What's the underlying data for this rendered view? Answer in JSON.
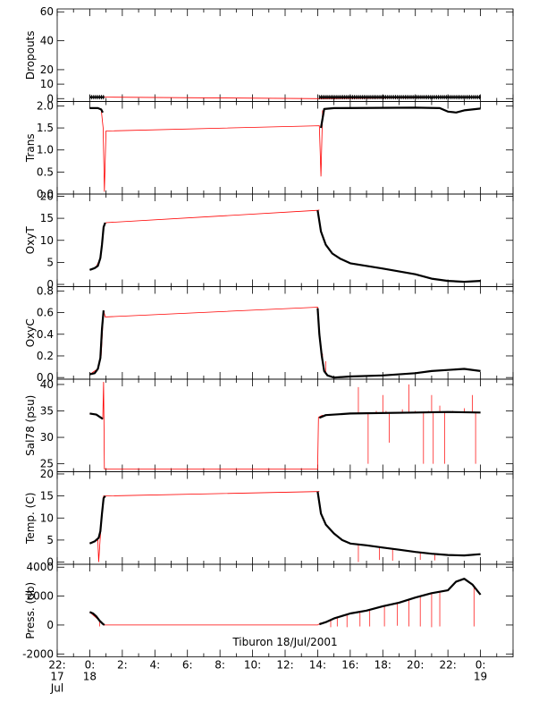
{
  "colors": {
    "axis": "#000000",
    "raw": "#ff0000",
    "data": "#000000"
  },
  "x_axis": {
    "domain": [
      -2,
      26
    ],
    "ticks": [
      {
        "v": -2,
        "label": "22:",
        "sub": [
          "17",
          "Jul"
        ]
      },
      {
        "v": 0,
        "label": "0:",
        "sub": [
          "18"
        ]
      },
      {
        "v": 2,
        "label": "2:"
      },
      {
        "v": 4,
        "label": "4:"
      },
      {
        "v": 6,
        "label": "6:"
      },
      {
        "v": 8,
        "label": "8:"
      },
      {
        "v": 10,
        "label": "10:"
      },
      {
        "v": 12,
        "label": "12:"
      },
      {
        "v": 14,
        "label": "14:"
      },
      {
        "v": 16,
        "label": "16:"
      },
      {
        "v": 18,
        "label": "18:"
      },
      {
        "v": 20,
        "label": "20:"
      },
      {
        "v": 22,
        "label": "22:"
      },
      {
        "v": 24,
        "label": "0:",
        "sub": [
          "19"
        ]
      }
    ],
    "title": "Tiburon 18/Jul/2001"
  },
  "chart_data": [
    {
      "type": "line",
      "ylabel": "Dropouts",
      "ylim": [
        -2,
        62
      ],
      "ticks": [
        {
          "v": 0,
          "label": "0"
        },
        {
          "v": 10,
          "label": "10"
        },
        {
          "v": 20,
          "label": "20"
        },
        {
          "v": 40,
          "label": "40"
        },
        {
          "v": 60,
          "label": "60"
        }
      ],
      "raw": [
        [
          0,
          1
        ],
        [
          0.9,
          1
        ],
        [
          14.2,
          0
        ],
        [
          24,
          1
        ]
      ],
      "data": [
        [
          [
            0,
            1
          ],
          [
            0.9,
            1
          ]
        ],
        [
          [
            14.1,
            1
          ],
          [
            24,
            1
          ]
        ]
      ],
      "spikes": []
    },
    {
      "type": "line",
      "ylabel": "Trans",
      "ylim": [
        0,
        2.1
      ],
      "ticks": [
        {
          "v": 0,
          "label": "0.0"
        },
        {
          "v": 0.5,
          "label": "0.5"
        },
        {
          "v": 1,
          "label": "1.0"
        },
        {
          "v": 1.5,
          "label": "1.5"
        },
        {
          "v": 2,
          "label": "2.0"
        }
      ],
      "raw": [
        [
          0,
          1.95
        ],
        [
          0.7,
          1.93
        ],
        [
          0.82,
          1.5
        ],
        [
          0.9,
          0.05
        ],
        [
          1.0,
          1.43
        ],
        [
          14.1,
          1.55
        ],
        [
          14.2,
          0.4
        ],
        [
          14.3,
          1.9
        ]
      ],
      "data": [
        [
          [
            0,
            1.95
          ],
          [
            0.5,
            1.95
          ],
          [
            0.7,
            1.92
          ],
          [
            0.8,
            1.85
          ]
        ],
        [
          [
            14.2,
            1.5
          ],
          [
            14.4,
            1.93
          ],
          [
            15,
            1.95
          ],
          [
            20,
            1.96
          ],
          [
            21.5,
            1.95
          ],
          [
            22,
            1.87
          ],
          [
            22.5,
            1.85
          ],
          [
            23,
            1.9
          ],
          [
            24,
            1.94
          ]
        ]
      ],
      "spikes": []
    },
    {
      "type": "line",
      "ylabel": "OxyT",
      "ylim": [
        -0.5,
        20.5
      ],
      "ticks": [
        {
          "v": 0,
          "label": "0"
        },
        {
          "v": 5,
          "label": "5"
        },
        {
          "v": 10,
          "label": "10"
        },
        {
          "v": 15,
          "label": "15"
        },
        {
          "v": 20,
          "label": "20"
        }
      ],
      "raw": [
        [
          0,
          3.3
        ],
        [
          0.4,
          4
        ],
        [
          0.65,
          6
        ],
        [
          0.85,
          13
        ],
        [
          1.0,
          14
        ],
        [
          14.0,
          16.8
        ],
        [
          14.1,
          16.9
        ]
      ],
      "data": [
        [
          [
            0,
            3.3
          ],
          [
            0.3,
            3.7
          ],
          [
            0.5,
            4.2
          ],
          [
            0.65,
            6
          ],
          [
            0.75,
            9
          ],
          [
            0.85,
            13
          ],
          [
            0.95,
            14
          ]
        ],
        [
          [
            14.0,
            16.8
          ],
          [
            14.2,
            12
          ],
          [
            14.5,
            9
          ],
          [
            14.9,
            7
          ],
          [
            15.4,
            5.8
          ],
          [
            16,
            4.8
          ],
          [
            18,
            3.6
          ],
          [
            20,
            2.3
          ],
          [
            21,
            1.3
          ],
          [
            22,
            0.8
          ],
          [
            23,
            0.6
          ],
          [
            24,
            0.8
          ]
        ]
      ],
      "spikes": []
    },
    {
      "type": "line",
      "ylabel": "OxyC",
      "ylim": [
        -0.015,
        0.84
      ],
      "ticks": [
        {
          "v": 0,
          "label": "0.0"
        },
        {
          "v": 0.2,
          "label": "0.2"
        },
        {
          "v": 0.4,
          "label": "0.4"
        },
        {
          "v": 0.6,
          "label": "0.6"
        },
        {
          "v": 0.8,
          "label": "0.8"
        }
      ],
      "raw": [
        [
          0,
          0.03
        ],
        [
          0.5,
          0.08
        ],
        [
          0.7,
          0.2
        ],
        [
          0.85,
          0.62
        ],
        [
          0.95,
          0.56
        ],
        [
          14.0,
          0.65
        ],
        [
          14.05,
          0.62
        ]
      ],
      "data": [
        [
          [
            0,
            0.03
          ],
          [
            0.3,
            0.04
          ],
          [
            0.5,
            0.08
          ],
          [
            0.65,
            0.18
          ],
          [
            0.75,
            0.45
          ],
          [
            0.85,
            0.62
          ]
        ],
        [
          [
            14.0,
            0.64
          ],
          [
            14.1,
            0.4
          ],
          [
            14.25,
            0.2
          ],
          [
            14.4,
            0.06
          ],
          [
            14.6,
            0.02
          ],
          [
            15,
            0.0
          ],
          [
            16,
            0.01
          ],
          [
            18,
            0.02
          ],
          [
            20,
            0.04
          ],
          [
            21,
            0.06
          ],
          [
            22,
            0.07
          ],
          [
            23,
            0.08
          ],
          [
            24,
            0.06
          ]
        ]
      ],
      "spikes": [
        [
          14.3,
          0.22
        ],
        [
          14.5,
          0.15
        ]
      ]
    },
    {
      "type": "line",
      "ylabel": "Sal78 (psu)",
      "ylim": [
        23.5,
        41
      ],
      "ticks": [
        {
          "v": 25,
          "label": "25"
        },
        {
          "v": 30,
          "label": "30"
        },
        {
          "v": 35,
          "label": "35"
        },
        {
          "v": 40,
          "label": "40"
        }
      ],
      "raw": [
        [
          0,
          34.5
        ],
        [
          0.5,
          34.2
        ],
        [
          0.8,
          33.5
        ],
        [
          0.85,
          40.5
        ],
        [
          0.9,
          24
        ],
        [
          14.0,
          24
        ],
        [
          14.05,
          33.8
        ],
        [
          14.3,
          34.2
        ]
      ],
      "data": [
        [
          [
            0,
            34.5
          ],
          [
            0.4,
            34.3
          ],
          [
            0.8,
            33.5
          ]
        ],
        [
          [
            14.1,
            33.7
          ],
          [
            14.5,
            34.2
          ],
          [
            16,
            34.5
          ],
          [
            20,
            34.7
          ],
          [
            22,
            34.8
          ],
          [
            24,
            34.7
          ]
        ]
      ],
      "spikes": [
        [
          16.5,
          39.5
        ],
        [
          17.1,
          25
        ],
        [
          17.6,
          35
        ],
        [
          18.0,
          38
        ],
        [
          18.2,
          35
        ],
        [
          18.4,
          29
        ],
        [
          19.2,
          35.3
        ],
        [
          19.6,
          40
        ],
        [
          20.0,
          35
        ],
        [
          20.5,
          25
        ],
        [
          20.8,
          35
        ],
        [
          21.0,
          38
        ],
        [
          21.1,
          25
        ],
        [
          21.5,
          36
        ],
        [
          21.8,
          25
        ],
        [
          22.3,
          35
        ],
        [
          23.0,
          35.5
        ],
        [
          23.5,
          38
        ],
        [
          23.7,
          25
        ]
      ]
    },
    {
      "type": "line",
      "ylabel": "Temp. (C)",
      "ylim": [
        -0.5,
        20.5
      ],
      "ticks": [
        {
          "v": 0,
          "label": "0"
        },
        {
          "v": 5,
          "label": "5"
        },
        {
          "v": 10,
          "label": "10"
        },
        {
          "v": 15,
          "label": "15"
        },
        {
          "v": 20,
          "label": "20"
        }
      ],
      "raw": [
        [
          0,
          4.2
        ],
        [
          0.5,
          5
        ],
        [
          0.55,
          0
        ],
        [
          0.65,
          6
        ],
        [
          0.85,
          15
        ],
        [
          1.0,
          15
        ],
        [
          14.0,
          16
        ],
        [
          14.1,
          16.1
        ]
      ],
      "data": [
        [
          [
            0,
            4.2
          ],
          [
            0.3,
            4.7
          ],
          [
            0.55,
            5.5
          ],
          [
            0.65,
            7
          ],
          [
            0.75,
            11
          ],
          [
            0.85,
            14.5
          ],
          [
            0.95,
            15
          ]
        ],
        [
          [
            14.0,
            16
          ],
          [
            14.2,
            11
          ],
          [
            14.5,
            8.5
          ],
          [
            15,
            6.5
          ],
          [
            15.5,
            5
          ],
          [
            16,
            4.2
          ],
          [
            17,
            3.8
          ],
          [
            18,
            3.3
          ],
          [
            19,
            2.8
          ],
          [
            20,
            2.3
          ],
          [
            21,
            1.9
          ],
          [
            22,
            1.6
          ],
          [
            23,
            1.5
          ],
          [
            24,
            1.8
          ]
        ]
      ],
      "spikes": [
        [
          16.5,
          0
        ],
        [
          17.8,
          0.5
        ],
        [
          18.6,
          0.3
        ],
        [
          20.3,
          0.5
        ],
        [
          21.2,
          0.4
        ]
      ]
    },
    {
      "type": "line",
      "ylabel": "Press. (db)",
      "ylim": [
        -2200,
        4200
      ],
      "ticks": [
        {
          "v": -2000,
          "label": "-2000"
        },
        {
          "v": 0,
          "label": "0"
        },
        {
          "v": 2000,
          "label": "2000"
        },
        {
          "v": 4000,
          "label": "4000"
        }
      ],
      "raw": [
        [
          0,
          900
        ],
        [
          0.5,
          400
        ],
        [
          0.85,
          0
        ],
        [
          14.0,
          0
        ],
        [
          14.2,
          150
        ]
      ],
      "data": [
        [
          [
            0,
            900
          ],
          [
            0.2,
            800
          ],
          [
            0.4,
            600
          ],
          [
            0.6,
            300
          ],
          [
            0.8,
            80
          ],
          [
            0.9,
            0
          ]
        ],
        [
          [
            14.1,
            50
          ],
          [
            14.5,
            200
          ],
          [
            15,
            450
          ],
          [
            16,
            800
          ],
          [
            17,
            1000
          ],
          [
            18,
            1300
          ],
          [
            19,
            1550
          ],
          [
            20,
            1900
          ],
          [
            21,
            2200
          ],
          [
            22,
            2400
          ],
          [
            22.5,
            3000
          ],
          [
            23,
            3200
          ],
          [
            23.5,
            2800
          ],
          [
            24,
            2100
          ]
        ]
      ],
      "spikes": [
        [
          0.6,
          -100
        ],
        [
          14.8,
          -150
        ],
        [
          15.2,
          -100
        ],
        [
          15.8,
          -150
        ],
        [
          16.6,
          -100
        ],
        [
          17.2,
          -100
        ],
        [
          18.1,
          -100
        ],
        [
          18.9,
          -50
        ],
        [
          19.6,
          -100
        ],
        [
          20.3,
          -100
        ],
        [
          21.0,
          -150
        ],
        [
          21.5,
          -100
        ],
        [
          23.6,
          -100
        ]
      ]
    }
  ]
}
